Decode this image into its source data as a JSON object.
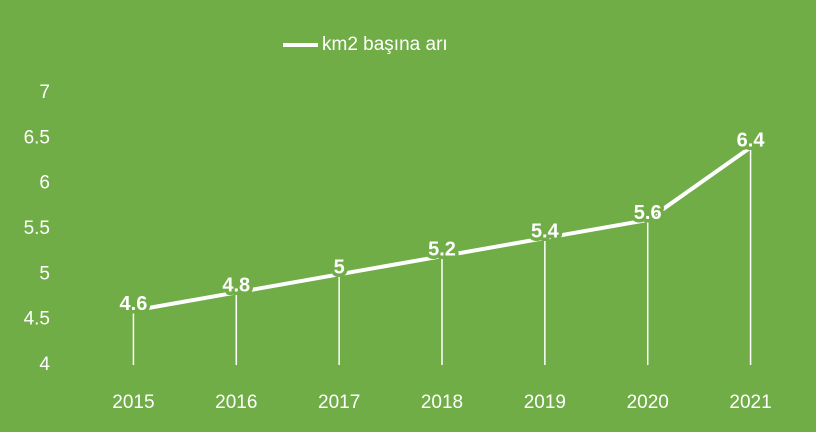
{
  "chart_data": {
    "type": "line",
    "categories": [
      "2015",
      "2016",
      "2017",
      "2018",
      "2019",
      "2020",
      "2021"
    ],
    "series": [
      {
        "name": "km2 başına arı",
        "color": "#ffffff",
        "values": [
          4.6,
          4.8,
          5,
          5.2,
          5.4,
          5.6,
          6.4
        ]
      }
    ],
    "ylim": [
      4,
      7
    ],
    "yticks": [
      4,
      4.5,
      5,
      5.5,
      6,
      6.5,
      7
    ],
    "grid": false,
    "drop_lines": true,
    "data_labels": true,
    "legend": "top",
    "background": "#70ad47"
  }
}
